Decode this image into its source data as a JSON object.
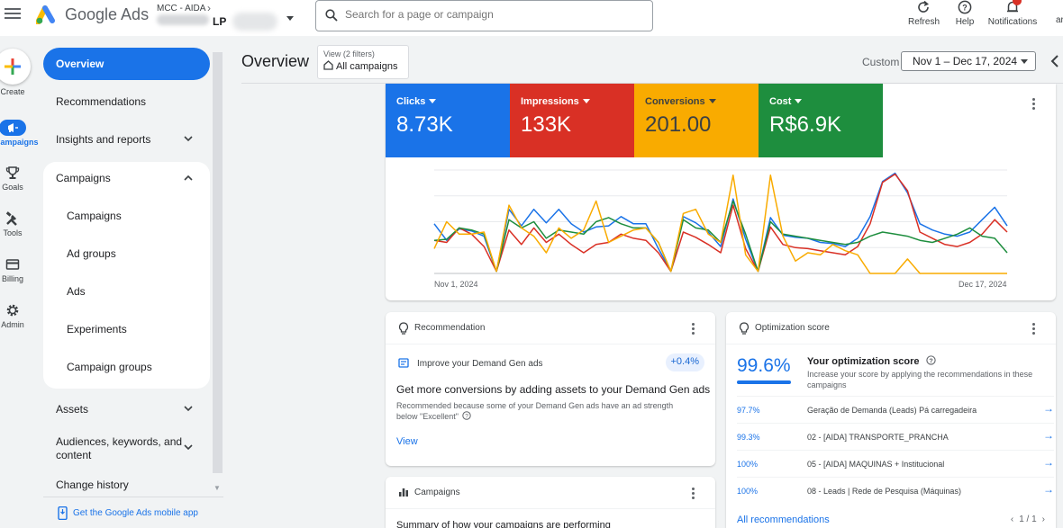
{
  "header": {
    "brand": "Google Ads",
    "account_parent": "MCC - AIDA",
    "account_name": "LP",
    "search_placeholder": "Search for a page or campaign",
    "refresh": "Refresh",
    "help": "Help",
    "notifications": "Notifications",
    "notifications_count": "1",
    "cut_text": "ar"
  },
  "rail": {
    "create": "Create",
    "campaigns": "Campaigns",
    "goals": "Goals",
    "tools": "Tools",
    "billing": "Billing",
    "admin": "Admin",
    "active": "campaigns"
  },
  "sidebar": {
    "overview": "Overview",
    "recommendations": "Recommendations",
    "insights": "Insights and reports",
    "campaigns_group": "Campaigns",
    "sub_items": [
      "Campaigns",
      "Ad groups",
      "Ads",
      "Experiments",
      "Campaign groups"
    ],
    "assets": "Assets",
    "audiences_line1": "Audiences, keywords, and",
    "audiences_line2": "content",
    "change_history": "Change history",
    "mobile_app": "Get the Google Ads mobile app"
  },
  "title_bar": {
    "title": "Overview",
    "view_filters": "View (2 filters)",
    "view_scope": "All campaigns",
    "custom_label": "Custom",
    "date_range": "Nov 1 – Dec 17, 2024"
  },
  "metrics": [
    {
      "name": "Clicks",
      "value": "8.73K",
      "color": "#1a73e8"
    },
    {
      "name": "Impressions",
      "value": "133K",
      "color": "#d93025"
    },
    {
      "name": "Conversions",
      "value": "201.00",
      "color": "#f9ab00"
    },
    {
      "name": "Cost",
      "value": "R$6.9K",
      "color": "#1e8e3e"
    }
  ],
  "chart_data": {
    "type": "line",
    "x_start_label": "Nov 1, 2024",
    "x_end_label": "Dec 17, 2024",
    "x": [
      "Nov 1",
      "Nov 2",
      "Nov 3",
      "Nov 4",
      "Nov 5",
      "Nov 6",
      "Nov 7",
      "Nov 8",
      "Nov 9",
      "Nov 10",
      "Nov 11",
      "Nov 12",
      "Nov 13",
      "Nov 14",
      "Nov 15",
      "Nov 16",
      "Nov 17",
      "Nov 18",
      "Nov 19",
      "Nov 20",
      "Nov 21",
      "Nov 22",
      "Nov 23",
      "Nov 24",
      "Nov 25",
      "Nov 26",
      "Nov 27",
      "Nov 28",
      "Nov 29",
      "Nov 30",
      "Dec 1",
      "Dec 2",
      "Dec 3",
      "Dec 4",
      "Dec 5",
      "Dec 6",
      "Dec 7",
      "Dec 8",
      "Dec 9",
      "Dec 10",
      "Dec 11",
      "Dec 12",
      "Dec 13",
      "Dec 14",
      "Dec 15",
      "Dec 16",
      "Dec 17"
    ],
    "ylim": [
      0,
      100
    ],
    "grid": true,
    "series": [
      {
        "color": "#1a73e8",
        "values": [
          48,
          32,
          43,
          41,
          36,
          2,
          62,
          46,
          62,
          49,
          62,
          48,
          40,
          45,
          46,
          55,
          48,
          48,
          24,
          2,
          55,
          49,
          40,
          26,
          72,
          33,
          2,
          54,
          37,
          35,
          34,
          30,
          29,
          26,
          34,
          55,
          89,
          97,
          78,
          48,
          42,
          38,
          36,
          40,
          52,
          64,
          46
        ]
      },
      {
        "color": "#d93025",
        "values": [
          32,
          30,
          44,
          38,
          26,
          2,
          42,
          28,
          44,
          30,
          38,
          28,
          20,
          28,
          30,
          38,
          34,
          32,
          20,
          2,
          40,
          35,
          28,
          20,
          66,
          24,
          2,
          45,
          28,
          25,
          24,
          22,
          20,
          18,
          26,
          48,
          88,
          96,
          80,
          40,
          34,
          28,
          26,
          30,
          38,
          52,
          40
        ]
      },
      {
        "color": "#1e8e3e",
        "values": [
          32,
          33,
          44,
          42,
          38,
          2,
          52,
          44,
          50,
          34,
          42,
          40,
          38,
          50,
          54,
          48,
          44,
          44,
          30,
          2,
          52,
          44,
          42,
          30,
          70,
          38,
          2,
          50,
          38,
          36,
          34,
          32,
          30,
          28,
          30,
          36,
          40,
          38,
          36,
          32,
          30,
          34,
          38,
          44,
          36,
          34,
          20
        ]
      },
      {
        "color": "#f9ab00",
        "values": [
          24,
          50,
          38,
          38,
          40,
          2,
          66,
          44,
          36,
          20,
          44,
          34,
          42,
          70,
          30,
          36,
          42,
          44,
          30,
          2,
          58,
          62,
          38,
          30,
          95,
          18,
          2,
          95,
          36,
          12,
          20,
          18,
          28,
          22,
          18,
          0,
          0,
          0,
          14,
          0,
          0,
          0,
          0,
          0,
          0,
          0,
          0
        ]
      }
    ]
  },
  "recommendation": {
    "header": "Recommendation",
    "item": "Improve your Demand Gen ads",
    "badge": "+0.4%",
    "title": "Get more conversions by adding assets to your Demand Gen ads",
    "desc": "Recommended because some of your Demand Gen ads have an ad strength below \"Excellent\"",
    "view": "View"
  },
  "optimization": {
    "header": "Optimization score",
    "score": "99.6%",
    "score_fraction": 0.996,
    "title": "Your optimization score",
    "subtitle": "Increase your score by applying the recommendations in these campaigns",
    "rows": [
      {
        "pct": "97.7%",
        "name": "Geração de Demanda (Leads) Pá carregadeira"
      },
      {
        "pct": "99.3%",
        "name": "02 - [AIDA] TRANSPORTE_PRANCHA"
      },
      {
        "pct": "100%",
        "name": "05 - [AIDA] MAQUINAS + Institucional"
      },
      {
        "pct": "100%",
        "name": "08 - Leads | Rede de Pesquisa (Máquinas)"
      }
    ],
    "all_recs": "All recommendations",
    "pager": "1 / 1"
  },
  "campaigns_card": {
    "header": "Campaigns",
    "subtitle": "Summary of how your campaigns are performing"
  }
}
